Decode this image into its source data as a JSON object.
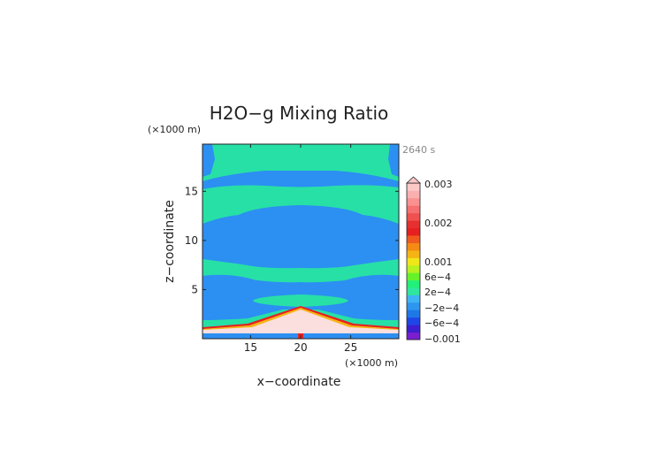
{
  "chart_data": {
    "type": "heatmap",
    "title": "H2O−g Mixing Ratio",
    "time_label": "2640 s",
    "xlabel": "x−coordinate",
    "ylabel": "z−coordinate",
    "x_units": "(×1000 m)",
    "y_units": "(×1000 m)",
    "xlim": [
      10.2,
      29.8
    ],
    "ylim": [
      0,
      19.8
    ],
    "x_ticks": [
      15,
      20,
      25
    ],
    "y_ticks": [
      5,
      10,
      15
    ],
    "grid": false,
    "legend_position": "right",
    "colorbar": {
      "labels": [
        "0.003",
        "0.002",
        "0.001",
        "6e−4",
        "2e−4",
        "−2e−4",
        "−6e−4",
        "−0.001"
      ],
      "bands": [
        "#7a1fd0",
        "#3b1fd0",
        "#1e46e6",
        "#1e78e6",
        "#2e96f0",
        "#3fb4f5",
        "#2ee6a0",
        "#22f07a",
        "#66f22a",
        "#b8f020",
        "#f0e61a",
        "#f5b414",
        "#f58a14",
        "#f05a1e",
        "#e62020",
        "#e63030",
        "#f05050",
        "#f57070",
        "#fa9090",
        "#fbb0b0",
        "#fcc8c8"
      ]
    },
    "colors": {
      "background_field": "#27e0a6",
      "negative_band": "#2c8ff2",
      "mountain_core": "#fbdede"
    }
  }
}
